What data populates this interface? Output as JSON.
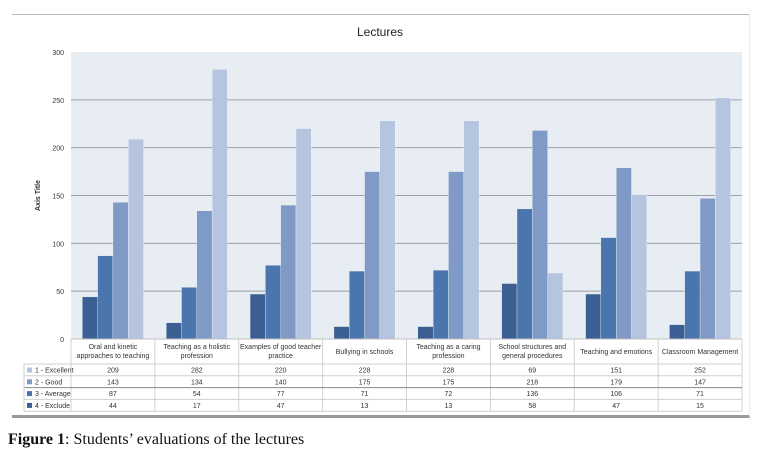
{
  "caption": {
    "prefix": "Figure 1",
    "text": ": Students’ evaluations of the lectures"
  },
  "chart_data": {
    "type": "bar",
    "title": "Lectures",
    "xlabel": "",
    "ylabel": "Axis Title",
    "ylim": [
      0,
      300
    ],
    "yticks": [
      0,
      50,
      100,
      150,
      200,
      250,
      300
    ],
    "grid": true,
    "legend": "data-table-left",
    "categories": [
      [
        "Oral and kinetic",
        "approaches to teaching"
      ],
      [
        "Teaching as a holistic",
        "profession"
      ],
      [
        "Examples of good teacher",
        "practice"
      ],
      [
        "Bullying in schools"
      ],
      [
        "Teaching as a caring",
        "profession"
      ],
      [
        "School structures and",
        "general procedures"
      ],
      [
        "Teaching and emotions"
      ],
      [
        "Classroom Management"
      ]
    ],
    "series": [
      {
        "name": "4 - Exclude",
        "color": "#3b5f92",
        "values": [
          44,
          17,
          47,
          13,
          13,
          58,
          47,
          15
        ]
      },
      {
        "name": "3 - Average",
        "color": "#4a76ad",
        "values": [
          87,
          54,
          77,
          71,
          72,
          136,
          106,
          71
        ]
      },
      {
        "name": "2 - Good",
        "color": "#7f9ac6",
        "values": [
          143,
          134,
          140,
          175,
          175,
          218,
          179,
          147
        ]
      },
      {
        "name": "1 - Excellent",
        "color": "#b5c4df",
        "values": [
          209,
          282,
          220,
          228,
          228,
          69,
          151,
          252
        ]
      }
    ]
  }
}
